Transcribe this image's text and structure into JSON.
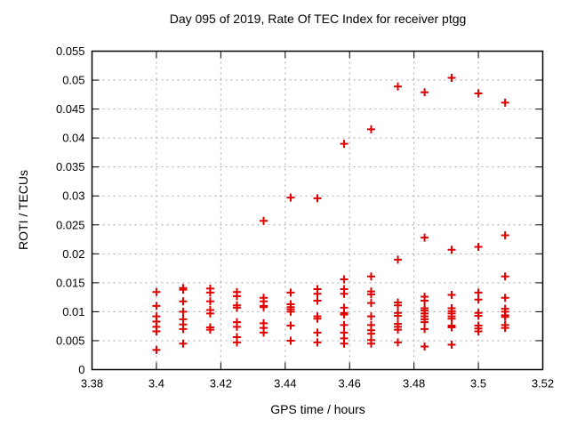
{
  "chart_data": {
    "type": "scatter",
    "title": "Day 095 of 2019, Rate Of TEC Index for receiver ptgg",
    "xlabel": "GPS time / hours",
    "ylabel": "ROTI / TECUs",
    "xlim": [
      3.38,
      3.52
    ],
    "ylim": [
      0,
      0.055
    ],
    "xticks": [
      [
        3.38,
        "3.38"
      ],
      [
        3.4,
        "3.4"
      ],
      [
        3.42,
        "3.42"
      ],
      [
        3.44,
        "3.44"
      ],
      [
        3.46,
        "3.46"
      ],
      [
        3.48,
        "3.48"
      ],
      [
        3.5,
        "3.5"
      ],
      [
        3.52,
        "3.52"
      ]
    ],
    "yticks": [
      [
        0,
        "0"
      ],
      [
        0.005,
        "0.005"
      ],
      [
        0.01,
        "0.01"
      ],
      [
        0.015,
        "0.015"
      ],
      [
        0.02,
        "0.02"
      ],
      [
        0.025,
        "0.025"
      ],
      [
        0.03,
        "0.03"
      ],
      [
        0.035,
        "0.035"
      ],
      [
        0.04,
        "0.04"
      ],
      [
        0.045,
        "0.045"
      ],
      [
        0.05,
        "0.05"
      ],
      [
        0.055,
        "0.055"
      ]
    ],
    "grid": true,
    "legend": "none",
    "marker": "plus",
    "marker_color": "#e10000",
    "grid_color": "#a6a6a6",
    "axis_color": "#000000",
    "series": [
      {
        "name": "ROTI",
        "points": [
          [
            3.4,
            0.0134
          ],
          [
            3.4,
            0.011
          ],
          [
            3.4,
            0.0092
          ],
          [
            3.4,
            0.0083
          ],
          [
            3.4,
            0.0074
          ],
          [
            3.4,
            0.0066
          ],
          [
            3.4,
            0.0034
          ],
          [
            3.4083,
            0.0141
          ],
          [
            3.4083,
            0.0138
          ],
          [
            3.4083,
            0.0118
          ],
          [
            3.4083,
            0.01
          ],
          [
            3.4083,
            0.0087
          ],
          [
            3.4083,
            0.0078
          ],
          [
            3.4083,
            0.007
          ],
          [
            3.4083,
            0.0045
          ],
          [
            3.4167,
            0.014
          ],
          [
            3.4167,
            0.0133
          ],
          [
            3.4167,
            0.0118
          ],
          [
            3.4167,
            0.0103
          ],
          [
            3.4167,
            0.0097
          ],
          [
            3.4167,
            0.0073
          ],
          [
            3.4167,
            0.0069
          ],
          [
            3.425,
            0.0134
          ],
          [
            3.425,
            0.0127
          ],
          [
            3.425,
            0.0111
          ],
          [
            3.425,
            0.0107
          ],
          [
            3.425,
            0.0082
          ],
          [
            3.425,
            0.0074
          ],
          [
            3.425,
            0.0056
          ],
          [
            3.425,
            0.0047
          ],
          [
            3.4333,
            0.0257
          ],
          [
            3.4333,
            0.0124
          ],
          [
            3.4333,
            0.0118
          ],
          [
            3.4333,
            0.011
          ],
          [
            3.4333,
            0.0108
          ],
          [
            3.4333,
            0.008
          ],
          [
            3.4333,
            0.0072
          ],
          [
            3.4333,
            0.0064
          ],
          [
            3.4417,
            0.0297
          ],
          [
            3.4417,
            0.0133
          ],
          [
            3.4417,
            0.0113
          ],
          [
            3.4417,
            0.0108
          ],
          [
            3.4417,
            0.0104
          ],
          [
            3.4417,
            0.01
          ],
          [
            3.4417,
            0.0076
          ],
          [
            3.4417,
            0.005
          ],
          [
            3.45,
            0.0296
          ],
          [
            3.45,
            0.0139
          ],
          [
            3.45,
            0.0131
          ],
          [
            3.45,
            0.0119
          ],
          [
            3.45,
            0.0092
          ],
          [
            3.45,
            0.0088
          ],
          [
            3.45,
            0.0064
          ],
          [
            3.45,
            0.0047
          ],
          [
            3.4583,
            0.039
          ],
          [
            3.4583,
            0.0156
          ],
          [
            3.4583,
            0.0139
          ],
          [
            3.4583,
            0.0131
          ],
          [
            3.4583,
            0.0107
          ],
          [
            3.4583,
            0.0098
          ],
          [
            3.4583,
            0.0095
          ],
          [
            3.4583,
            0.0077
          ],
          [
            3.4583,
            0.0064
          ],
          [
            3.4583,
            0.0054
          ],
          [
            3.4583,
            0.0045
          ],
          [
            3.4667,
            0.0415
          ],
          [
            3.4667,
            0.0161
          ],
          [
            3.4667,
            0.0135
          ],
          [
            3.4667,
            0.013
          ],
          [
            3.4667,
            0.0115
          ],
          [
            3.4667,
            0.0092
          ],
          [
            3.4667,
            0.0077
          ],
          [
            3.4667,
            0.0068
          ],
          [
            3.4667,
            0.0062
          ],
          [
            3.4667,
            0.0051
          ],
          [
            3.4667,
            0.0045
          ],
          [
            3.475,
            0.0489
          ],
          [
            3.475,
            0.019
          ],
          [
            3.475,
            0.0116
          ],
          [
            3.475,
            0.0111
          ],
          [
            3.475,
            0.0098
          ],
          [
            3.475,
            0.0093
          ],
          [
            3.475,
            0.0079
          ],
          [
            3.475,
            0.0074
          ],
          [
            3.475,
            0.0069
          ],
          [
            3.475,
            0.0047
          ],
          [
            3.4833,
            0.0479
          ],
          [
            3.4833,
            0.0228
          ],
          [
            3.4833,
            0.0126
          ],
          [
            3.4833,
            0.0119
          ],
          [
            3.4833,
            0.0106
          ],
          [
            3.4833,
            0.0102
          ],
          [
            3.4833,
            0.0097
          ],
          [
            3.4833,
            0.0092
          ],
          [
            3.4833,
            0.0087
          ],
          [
            3.4833,
            0.0082
          ],
          [
            3.4833,
            0.007
          ],
          [
            3.4833,
            0.004
          ],
          [
            3.4917,
            0.0504
          ],
          [
            3.4917,
            0.0207
          ],
          [
            3.4917,
            0.0129
          ],
          [
            3.4917,
            0.0106
          ],
          [
            3.4917,
            0.0101
          ],
          [
            3.4917,
            0.0097
          ],
          [
            3.4917,
            0.0092
          ],
          [
            3.4917,
            0.0088
          ],
          [
            3.4917,
            0.0076
          ],
          [
            3.4917,
            0.0073
          ],
          [
            3.4917,
            0.0043
          ],
          [
            3.5,
            0.0477
          ],
          [
            3.5,
            0.0212
          ],
          [
            3.5,
            0.0133
          ],
          [
            3.5,
            0.0121
          ],
          [
            3.5,
            0.0098
          ],
          [
            3.5,
            0.0093
          ],
          [
            3.5,
            0.0076
          ],
          [
            3.5,
            0.0071
          ],
          [
            3.5,
            0.0066
          ],
          [
            3.5083,
            0.0461
          ],
          [
            3.5083,
            0.0232
          ],
          [
            3.5083,
            0.0161
          ],
          [
            3.5083,
            0.0124
          ],
          [
            3.5083,
            0.0105
          ],
          [
            3.5083,
            0.01
          ],
          [
            3.5083,
            0.0094
          ],
          [
            3.5083,
            0.0091
          ],
          [
            3.5083,
            0.0077
          ],
          [
            3.5083,
            0.0072
          ]
        ]
      }
    ]
  }
}
